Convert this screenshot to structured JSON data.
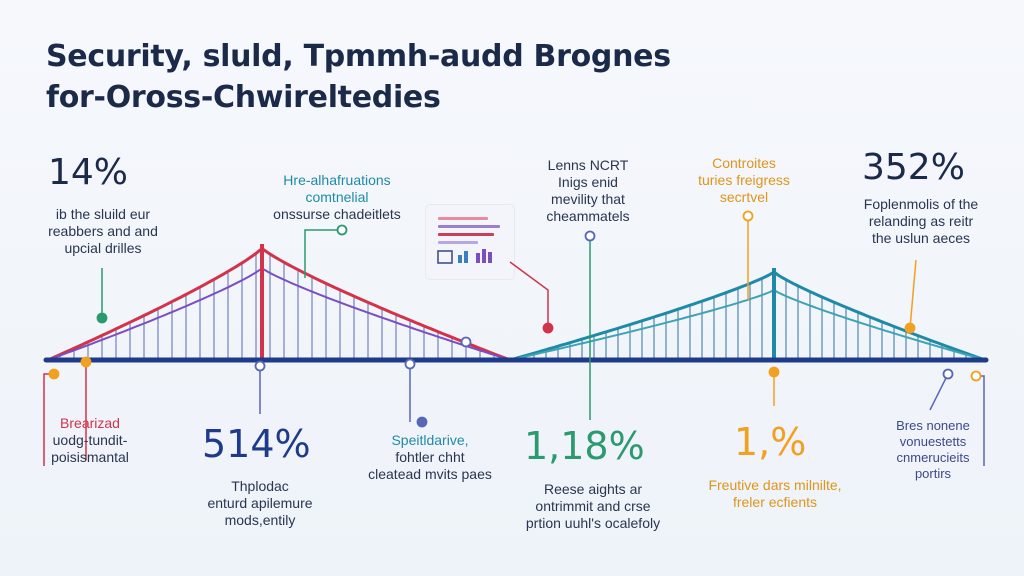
{
  "title": {
    "line1": "Security, sluld, Tpmmh-audd Brognes",
    "line2": "for-Oross-Chwireltedies"
  },
  "colors": {
    "deck": "#1e3a8a",
    "red": "#d2334a",
    "purple": "#7a4fc0",
    "teal": "#1f8aa8",
    "green": "#2b9a6e",
    "orange": "#f2a020",
    "navy": "#1c2a4a"
  },
  "top_callouts": [
    {
      "stat": "14%",
      "lines": [
        "ib the sluild eur",
        "reabbers and and",
        "upcial drilles"
      ]
    },
    {
      "stat": "",
      "lines": [
        "Hre-alhafruations",
        "comtnelial",
        "onssurse chadeitlets"
      ]
    },
    {
      "stat": "",
      "lines": [
        "Lenns NCRT",
        "Inigs enid",
        "mevility that",
        "cheammatels"
      ]
    },
    {
      "stat": "",
      "lines": [
        "Controites",
        "turies freigress",
        "secrtvel"
      ]
    },
    {
      "stat": "352%",
      "lines": [
        "Foplenmolis of the",
        "relanding as reitr",
        "the uslun aeces"
      ]
    }
  ],
  "bottom_callouts": [
    {
      "stat": "",
      "lines": [
        "Brearizad",
        "uodg-tundit-",
        "poisismantal"
      ]
    },
    {
      "stat": "514%",
      "lines": [
        "Thplodac",
        "enturd apilemure",
        "mods,entily"
      ]
    },
    {
      "stat": "",
      "lines": [
        "Speitldarive,",
        "fohtler chht",
        "cleatead mvits paes"
      ]
    },
    {
      "stat": "1,18%",
      "lines": [
        "Reese aights ar",
        "ontrimmit and crse",
        "prtion uuhl's ocalefoly"
      ]
    },
    {
      "stat": "1,%",
      "lines": [
        "Freutive dars milnilte,",
        "freler ecfients"
      ]
    },
    {
      "stat": "",
      "lines": [
        "Bres nonene",
        "vonuestetts",
        "cnmerucieits",
        "portirs"
      ]
    }
  ]
}
